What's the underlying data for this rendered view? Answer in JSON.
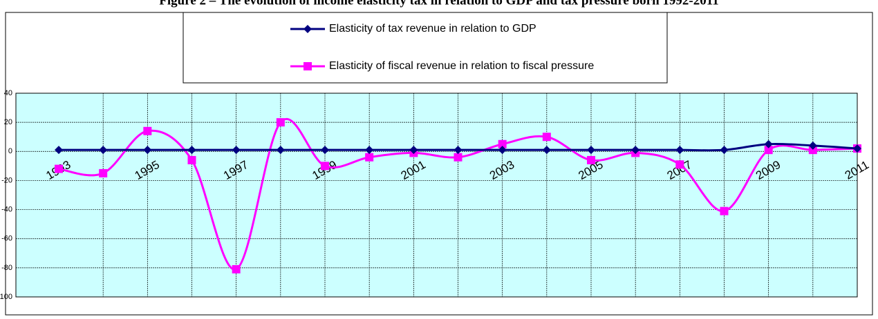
{
  "chart_data": {
    "type": "line",
    "title": "Figure 2 – The evolution of income elasticity tax in relation to GDP and tax pressure born 1992-2011",
    "categories": [
      "1993",
      null,
      "1995",
      null,
      "1997",
      null,
      "1999",
      null,
      "2001",
      null,
      "2003",
      null,
      "2005",
      null,
      "2007",
      null,
      "2009",
      null,
      "2011"
    ],
    "series": [
      {
        "name": "Elasticity of tax revenue in relation to GDP",
        "color": "#000080",
        "marker": "diamond",
        "values": [
          1,
          1,
          1,
          1,
          1,
          1,
          1,
          1,
          1,
          1,
          1,
          1,
          1,
          1,
          1,
          1,
          5,
          4,
          2
        ]
      },
      {
        "name": "Elasticity of fiscal revenue in relation to fiscal pressure",
        "color": "#ff00ff",
        "marker": "square",
        "values": [
          -12,
          -15,
          14,
          -6,
          -81,
          20,
          -10,
          -4,
          -1,
          -4,
          5,
          10,
          -6,
          -1,
          -9,
          -41,
          1,
          1,
          2
        ]
      }
    ],
    "ylim": [
      -100,
      40
    ],
    "yticks": [
      -100,
      -80,
      -60,
      -40,
      -20,
      0,
      20,
      40
    ],
    "grid": true,
    "smooth": true,
    "legend": "top"
  }
}
